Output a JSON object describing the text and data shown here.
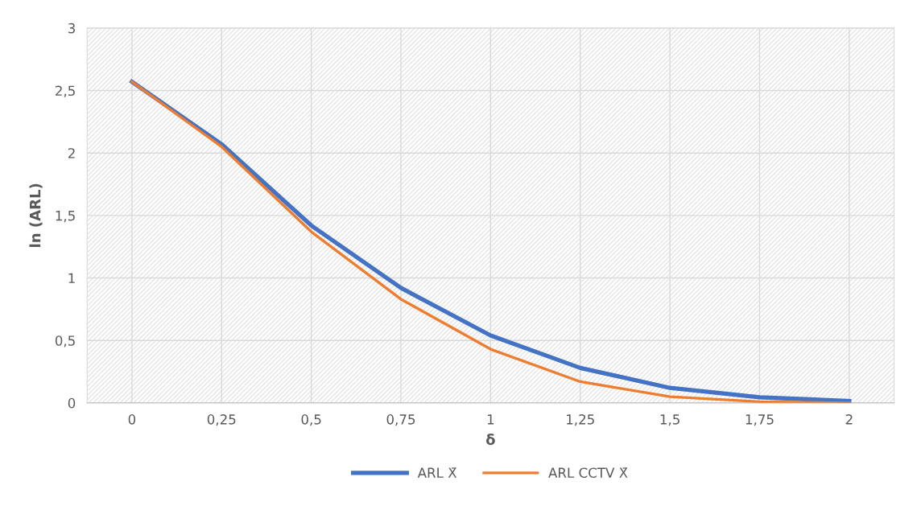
{
  "chart_data": {
    "type": "line",
    "xlabel": "δ",
    "ylabel": "ln (ARL)",
    "categories": [
      "0",
      "0,25",
      "0,5",
      "0,75",
      "1",
      "1,25",
      "1,5",
      "1,75",
      "2"
    ],
    "series": [
      {
        "name": "ARL X̄",
        "color": "#4472c4",
        "values": [
          2.57,
          2.07,
          1.42,
          0.92,
          0.54,
          0.28,
          0.12,
          0.045,
          0.015
        ]
      },
      {
        "name": "ARL CCTV X̄",
        "color": "#ed7d31",
        "values": [
          2.57,
          2.05,
          1.37,
          0.83,
          0.43,
          0.17,
          0.05,
          0.01,
          0.0
        ]
      }
    ],
    "ylim": [
      0,
      3
    ],
    "yticks": [
      0,
      {
        "value": 0.5,
        "label": "0,5"
      },
      1,
      {
        "value": 1.5,
        "label": "1,5"
      },
      2,
      {
        "value": 2.5,
        "label": "2,5"
      },
      3
    ],
    "grid": true,
    "legend": "bottom",
    "marker": "none",
    "line_style": "solid"
  }
}
